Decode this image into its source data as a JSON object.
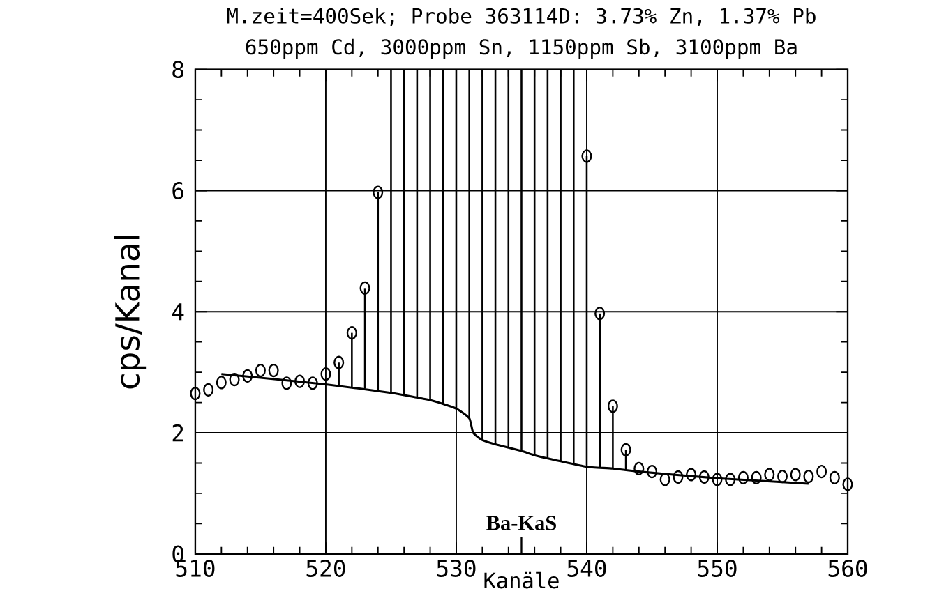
{
  "chart_data": {
    "type": "scatter",
    "title": "M.zeit=400Sek; Probe 363114D: 3.73% Zn, 1.37% Pb",
    "subtitle": "650ppm Cd, 3000ppm Sn, 1150ppm Sb, 3100ppm Ba",
    "xlabel": "Kanäle",
    "ylabel": "cps/Kanal",
    "xlim": [
      510,
      560
    ],
    "ylim": [
      0,
      8
    ],
    "xticks": [
      510,
      520,
      530,
      540,
      550,
      560
    ],
    "yticks": [
      0,
      2,
      4,
      6,
      8
    ],
    "grid": true,
    "annotations": [
      "Ba-KaS"
    ],
    "series": [
      {
        "type": "bar",
        "color": "#000000",
        "x": [
          521,
          522,
          523,
          524,
          525,
          526,
          527,
          528,
          529,
          530,
          531,
          532,
          533,
          534,
          535,
          536,
          537,
          538,
          539,
          540,
          541,
          542,
          543
        ],
        "base": [
          2.78,
          2.76,
          2.73,
          2.7,
          2.66,
          2.62,
          2.58,
          2.54,
          2.48,
          2.4,
          2.24,
          1.88,
          1.81,
          1.75,
          1.7,
          1.65,
          1.59,
          1.53,
          1.48,
          1.44,
          1.42,
          1.41,
          1.39
        ],
        "values": [
          0.38,
          0.89,
          1.66,
          3.27,
          5.34,
          5.38,
          5.42,
          5.46,
          5.52,
          5.6,
          5.76,
          6.12,
          6.19,
          6.25,
          6.3,
          6.35,
          6.41,
          6.47,
          6.52,
          5.13,
          2.55,
          1.03,
          0.33
        ]
      },
      {
        "type": "line",
        "color": "#000000",
        "line_style": "solid",
        "marker": "none",
        "x": [
          512,
          515,
          520,
          525,
          528,
          530,
          531,
          531.3,
          532,
          533,
          535,
          536,
          538,
          540,
          542,
          544,
          550,
          557
        ],
        "values": [
          2.97,
          2.91,
          2.8,
          2.66,
          2.54,
          2.4,
          2.24,
          2.0,
          1.88,
          1.81,
          1.7,
          1.63,
          1.53,
          1.44,
          1.41,
          1.36,
          1.25,
          1.16
        ]
      },
      {
        "color": "#000000",
        "marker": "circle",
        "x": [
          510,
          511,
          512,
          513,
          514,
          515,
          516,
          517,
          518,
          519,
          520,
          521,
          522,
          523,
          524,
          525,
          526,
          527,
          528,
          529,
          530,
          531,
          532,
          533,
          534,
          535,
          536,
          537,
          538,
          539,
          540,
          541,
          542,
          543,
          544,
          545,
          546,
          547,
          548,
          549,
          550,
          551,
          552,
          553,
          554,
          555,
          556,
          557,
          558,
          559,
          560
        ],
        "values": [
          2.65,
          2.71,
          2.83,
          2.88,
          2.94,
          3.03,
          3.03,
          2.82,
          2.85,
          2.82,
          2.97,
          3.16,
          3.65,
          4.39,
          5.97,
          null,
          null,
          null,
          null,
          null,
          null,
          null,
          null,
          null,
          null,
          null,
          null,
          null,
          null,
          null,
          6.57,
          3.97,
          2.44,
          1.72,
          1.41,
          1.36,
          1.23,
          1.27,
          1.31,
          1.27,
          1.23,
          1.23,
          1.26,
          1.26,
          1.31,
          1.28,
          1.31,
          1.28,
          1.36,
          1.26,
          1.15
        ]
      }
    ]
  }
}
